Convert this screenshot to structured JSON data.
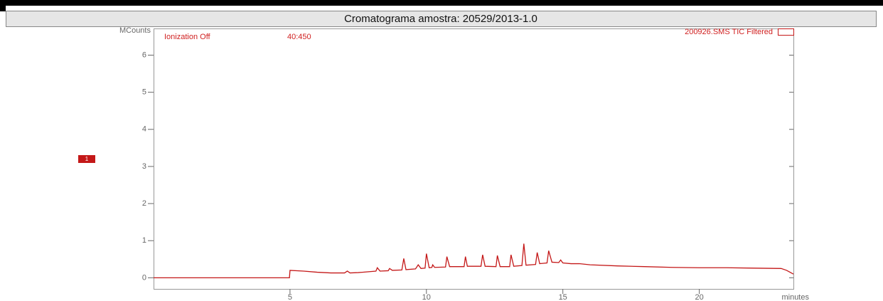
{
  "chart_data": {
    "type": "line",
    "title": "Cromatograma amostra: 20529/2013-1.0",
    "ylabel": "MCounts",
    "xlabel": "minutes",
    "annotations": [
      "Ionization Off",
      "40:450",
      "200926.SMS TIC Filtered"
    ],
    "x": [
      0,
      4.98,
      5.0,
      5.5,
      6,
      6.5,
      7.0,
      7.1,
      7.2,
      7.5,
      8.0,
      8.15,
      8.2,
      8.3,
      8.6,
      8.65,
      8.75,
      9.1,
      9.17,
      9.25,
      9.6,
      9.7,
      9.8,
      9.95,
      10.0,
      10.1,
      10.2,
      10.23,
      10.3,
      10.7,
      10.75,
      10.85,
      11.38,
      11.43,
      11.5,
      12.0,
      12.06,
      12.15,
      12.55,
      12.6,
      12.7,
      13.05,
      13.1,
      13.2,
      13.5,
      13.57,
      13.65,
      14.0,
      14.06,
      14.15,
      14.42,
      14.48,
      14.6,
      14.85,
      14.92,
      15.0,
      15.3,
      15.6,
      16,
      17,
      18,
      19,
      20,
      21,
      22,
      23,
      23.2,
      23.45
    ],
    "series": [
      {
        "name": "1",
        "color": "#c41818",
        "values": [
          0,
          0,
          0.2,
          0.18,
          0.15,
          0.13,
          0.13,
          0.18,
          0.13,
          0.14,
          0.17,
          0.18,
          0.27,
          0.18,
          0.19,
          0.25,
          0.2,
          0.21,
          0.52,
          0.22,
          0.24,
          0.35,
          0.25,
          0.26,
          0.65,
          0.27,
          0.28,
          0.35,
          0.28,
          0.29,
          0.57,
          0.3,
          0.3,
          0.57,
          0.31,
          0.31,
          0.62,
          0.31,
          0.3,
          0.6,
          0.3,
          0.3,
          0.62,
          0.31,
          0.33,
          0.92,
          0.34,
          0.36,
          0.68,
          0.38,
          0.4,
          0.73,
          0.42,
          0.41,
          0.48,
          0.4,
          0.38,
          0.38,
          0.35,
          0.32,
          0.3,
          0.28,
          0.27,
          0.27,
          0.26,
          0.25,
          0.2,
          0.1
        ]
      }
    ],
    "xlim": [
      0,
      23.45
    ],
    "xticks": [
      5,
      10,
      15,
      20
    ],
    "ylim": [
      -0.3,
      6.7
    ],
    "yticks": [
      0,
      1,
      2,
      3,
      4,
      5,
      6
    ]
  }
}
